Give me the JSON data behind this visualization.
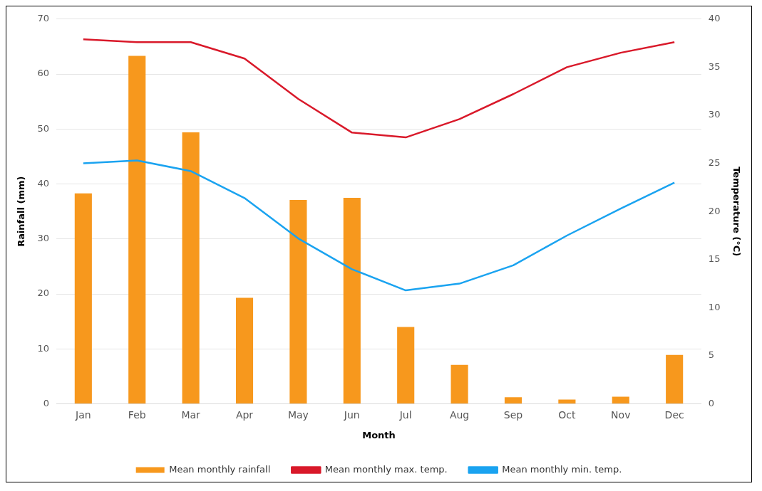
{
  "chart_data": {
    "type": "bar",
    "xlabel": "Month",
    "ylabel": "Rainfall (mm)",
    "y2label": "Temperature (°C)",
    "categories": [
      "Jan",
      "Feb",
      "Mar",
      "Apr",
      "May",
      "Jun",
      "Jul",
      "Aug",
      "Sep",
      "Oct",
      "Nov",
      "Dec"
    ],
    "series": [
      {
        "name": "Mean monthly rainfall",
        "color": "#f7981d",
        "values": [
          38.3,
          63.3,
          49.4,
          19.3,
          37.1,
          37.5,
          14.0,
          7.1,
          1.2,
          0.8,
          1.3,
          8.9
        ]
      },
      {
        "name": "Mean monthly max. temp.",
        "type": "line",
        "axis": "y2",
        "color": "#d9192a",
        "values": [
          37.9,
          37.6,
          37.6,
          35.9,
          31.7,
          28.2,
          27.7,
          29.6,
          32.2,
          35.0,
          36.5,
          37.6
        ]
      },
      {
        "name": "Mean monthly min. temp.",
        "type": "line",
        "axis": "y2",
        "color": "#1aa3f0",
        "values": [
          25.0,
          25.3,
          24.2,
          21.4,
          17.2,
          14.0,
          11.8,
          12.5,
          14.4,
          17.5,
          20.3,
          23.0
        ]
      }
    ],
    "ylim": [
      0,
      70
    ],
    "yticks": [
      0,
      10,
      20,
      30,
      40,
      50,
      60,
      70
    ],
    "y2lim": [
      0,
      40
    ],
    "y2ticks": [
      0,
      5,
      10,
      15,
      20,
      25,
      30,
      35,
      40
    ],
    "grid": "y",
    "legend": "bottom",
    "marker": "none",
    "line_style": "solid"
  }
}
